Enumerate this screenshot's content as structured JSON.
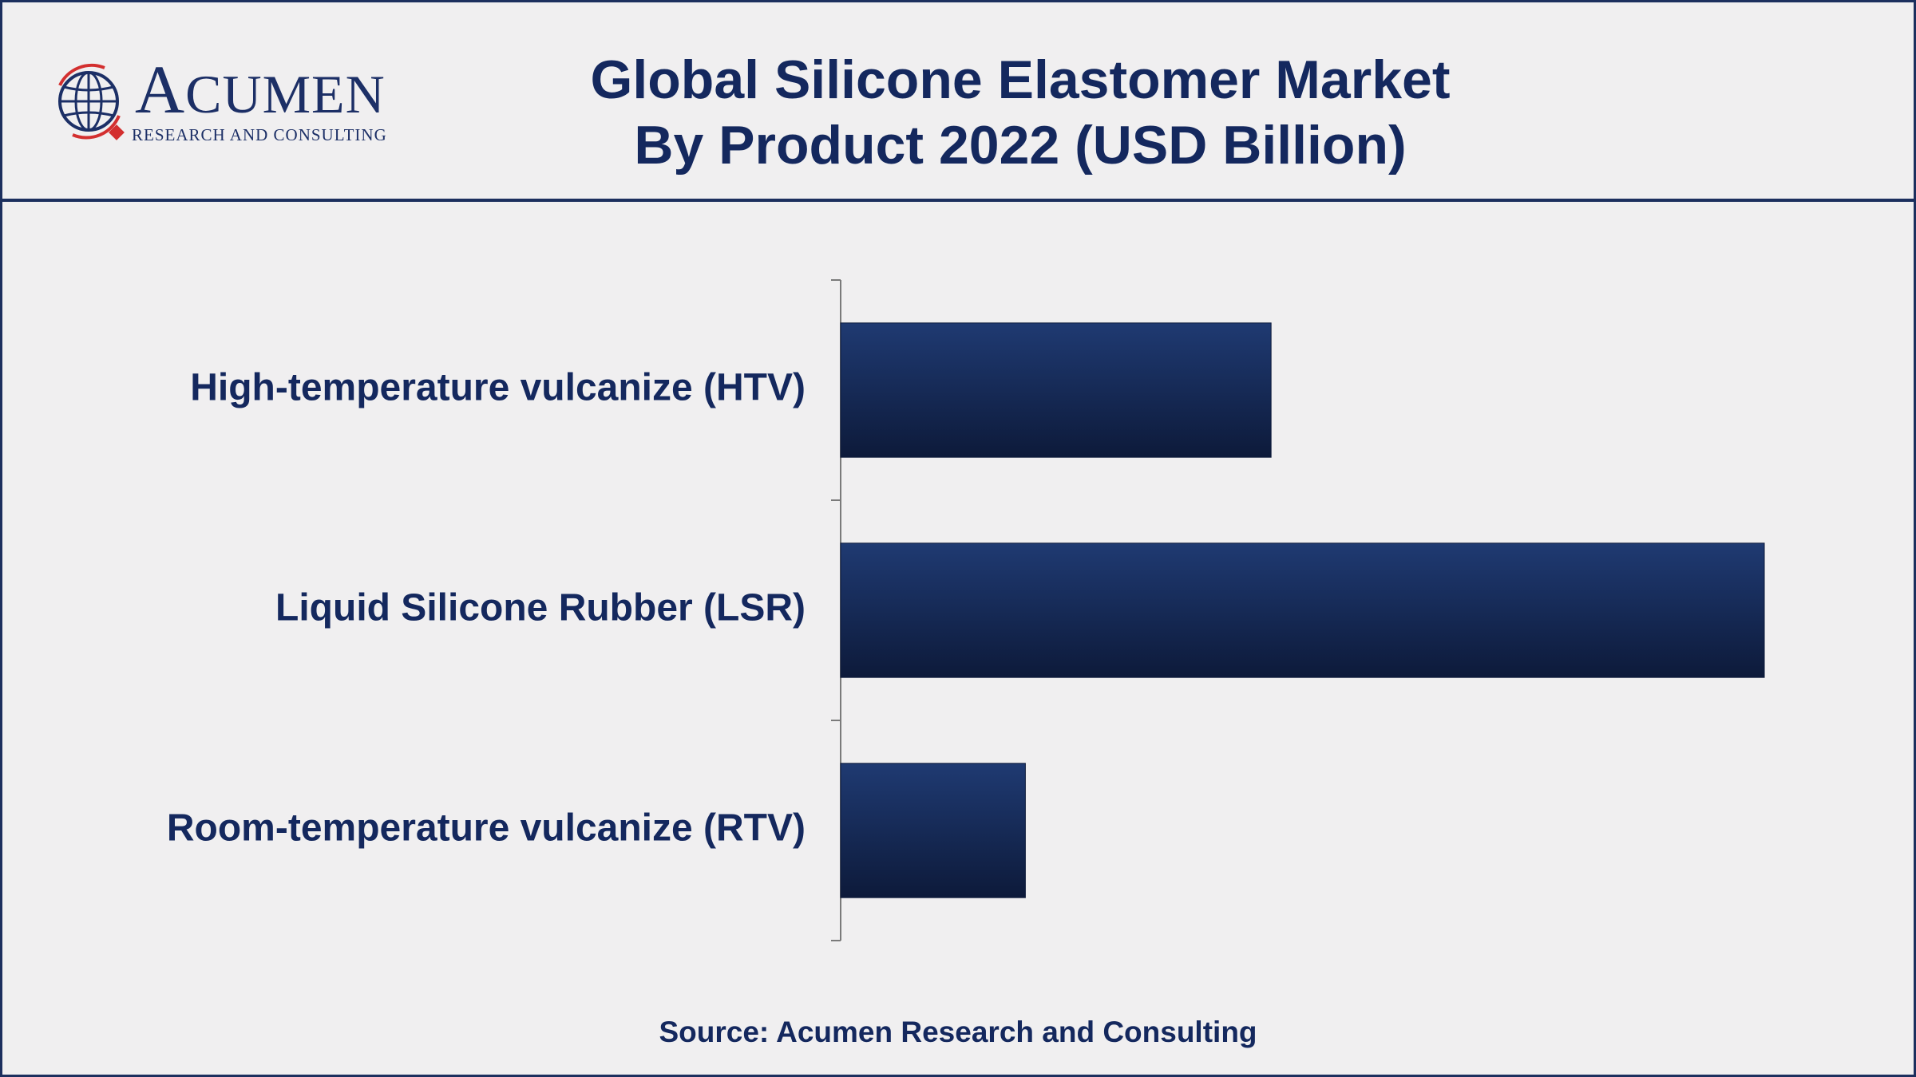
{
  "logo": {
    "name_initial": "A",
    "name_rest": "CUMEN",
    "subtitle": "RESEARCH AND CONSULTING"
  },
  "title_line1": "Global Silicone Elastomer Market",
  "title_line2": "By Product 2022 (USD Billion)",
  "source": "Source: Acumen Research and Consulting",
  "colors": {
    "bar_top": "#1f3a72",
    "bar_bottom": "#0d1a3a",
    "text": "#14285e",
    "border": "#1c2f5e",
    "background": "#f0eff0"
  },
  "chart_data": {
    "type": "bar",
    "orientation": "horizontal",
    "categories": [
      "High-temperature vulcanize (HTV)",
      "Liquid Silicone Rubber (LSR)",
      "Room-temperature vulcanize (RTV)"
    ],
    "values": [
      2.33,
      5.0,
      1.0
    ],
    "xlim": [
      0,
      5.0
    ],
    "grid": false,
    "legend": "none"
  }
}
